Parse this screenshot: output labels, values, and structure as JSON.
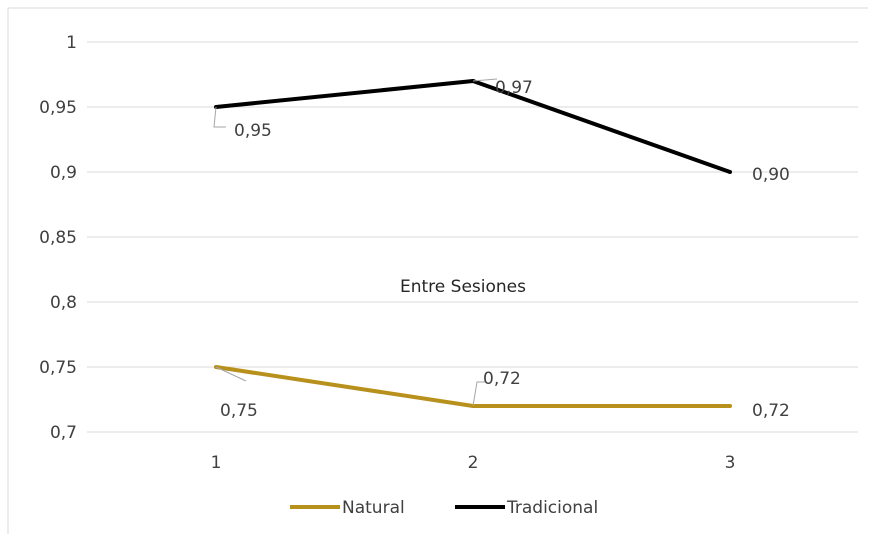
{
  "chart_data": {
    "type": "line",
    "title": "Entre Sesiones",
    "categories": [
      "1",
      "2",
      "3"
    ],
    "ylim": [
      0.7,
      1
    ],
    "yticks": [
      "0,7",
      "0,75",
      "0,8",
      "0,85",
      "0,9",
      "0,95",
      "1"
    ],
    "ytick_values": [
      0.7,
      0.75,
      0.8,
      0.85,
      0.9,
      0.95,
      1
    ],
    "grid": true,
    "legend_position": "bottom",
    "series": [
      {
        "name": "Natural",
        "color": "#B8901C",
        "values": [
          0.75,
          0.72,
          0.72
        ],
        "labels": [
          "0,75",
          "0,72",
          "0,72"
        ]
      },
      {
        "name": "Tradicional",
        "color": "#000000",
        "values": [
          0.95,
          0.97,
          0.9
        ],
        "labels": [
          "0,95",
          "0,97",
          "0,90"
        ]
      }
    ]
  }
}
